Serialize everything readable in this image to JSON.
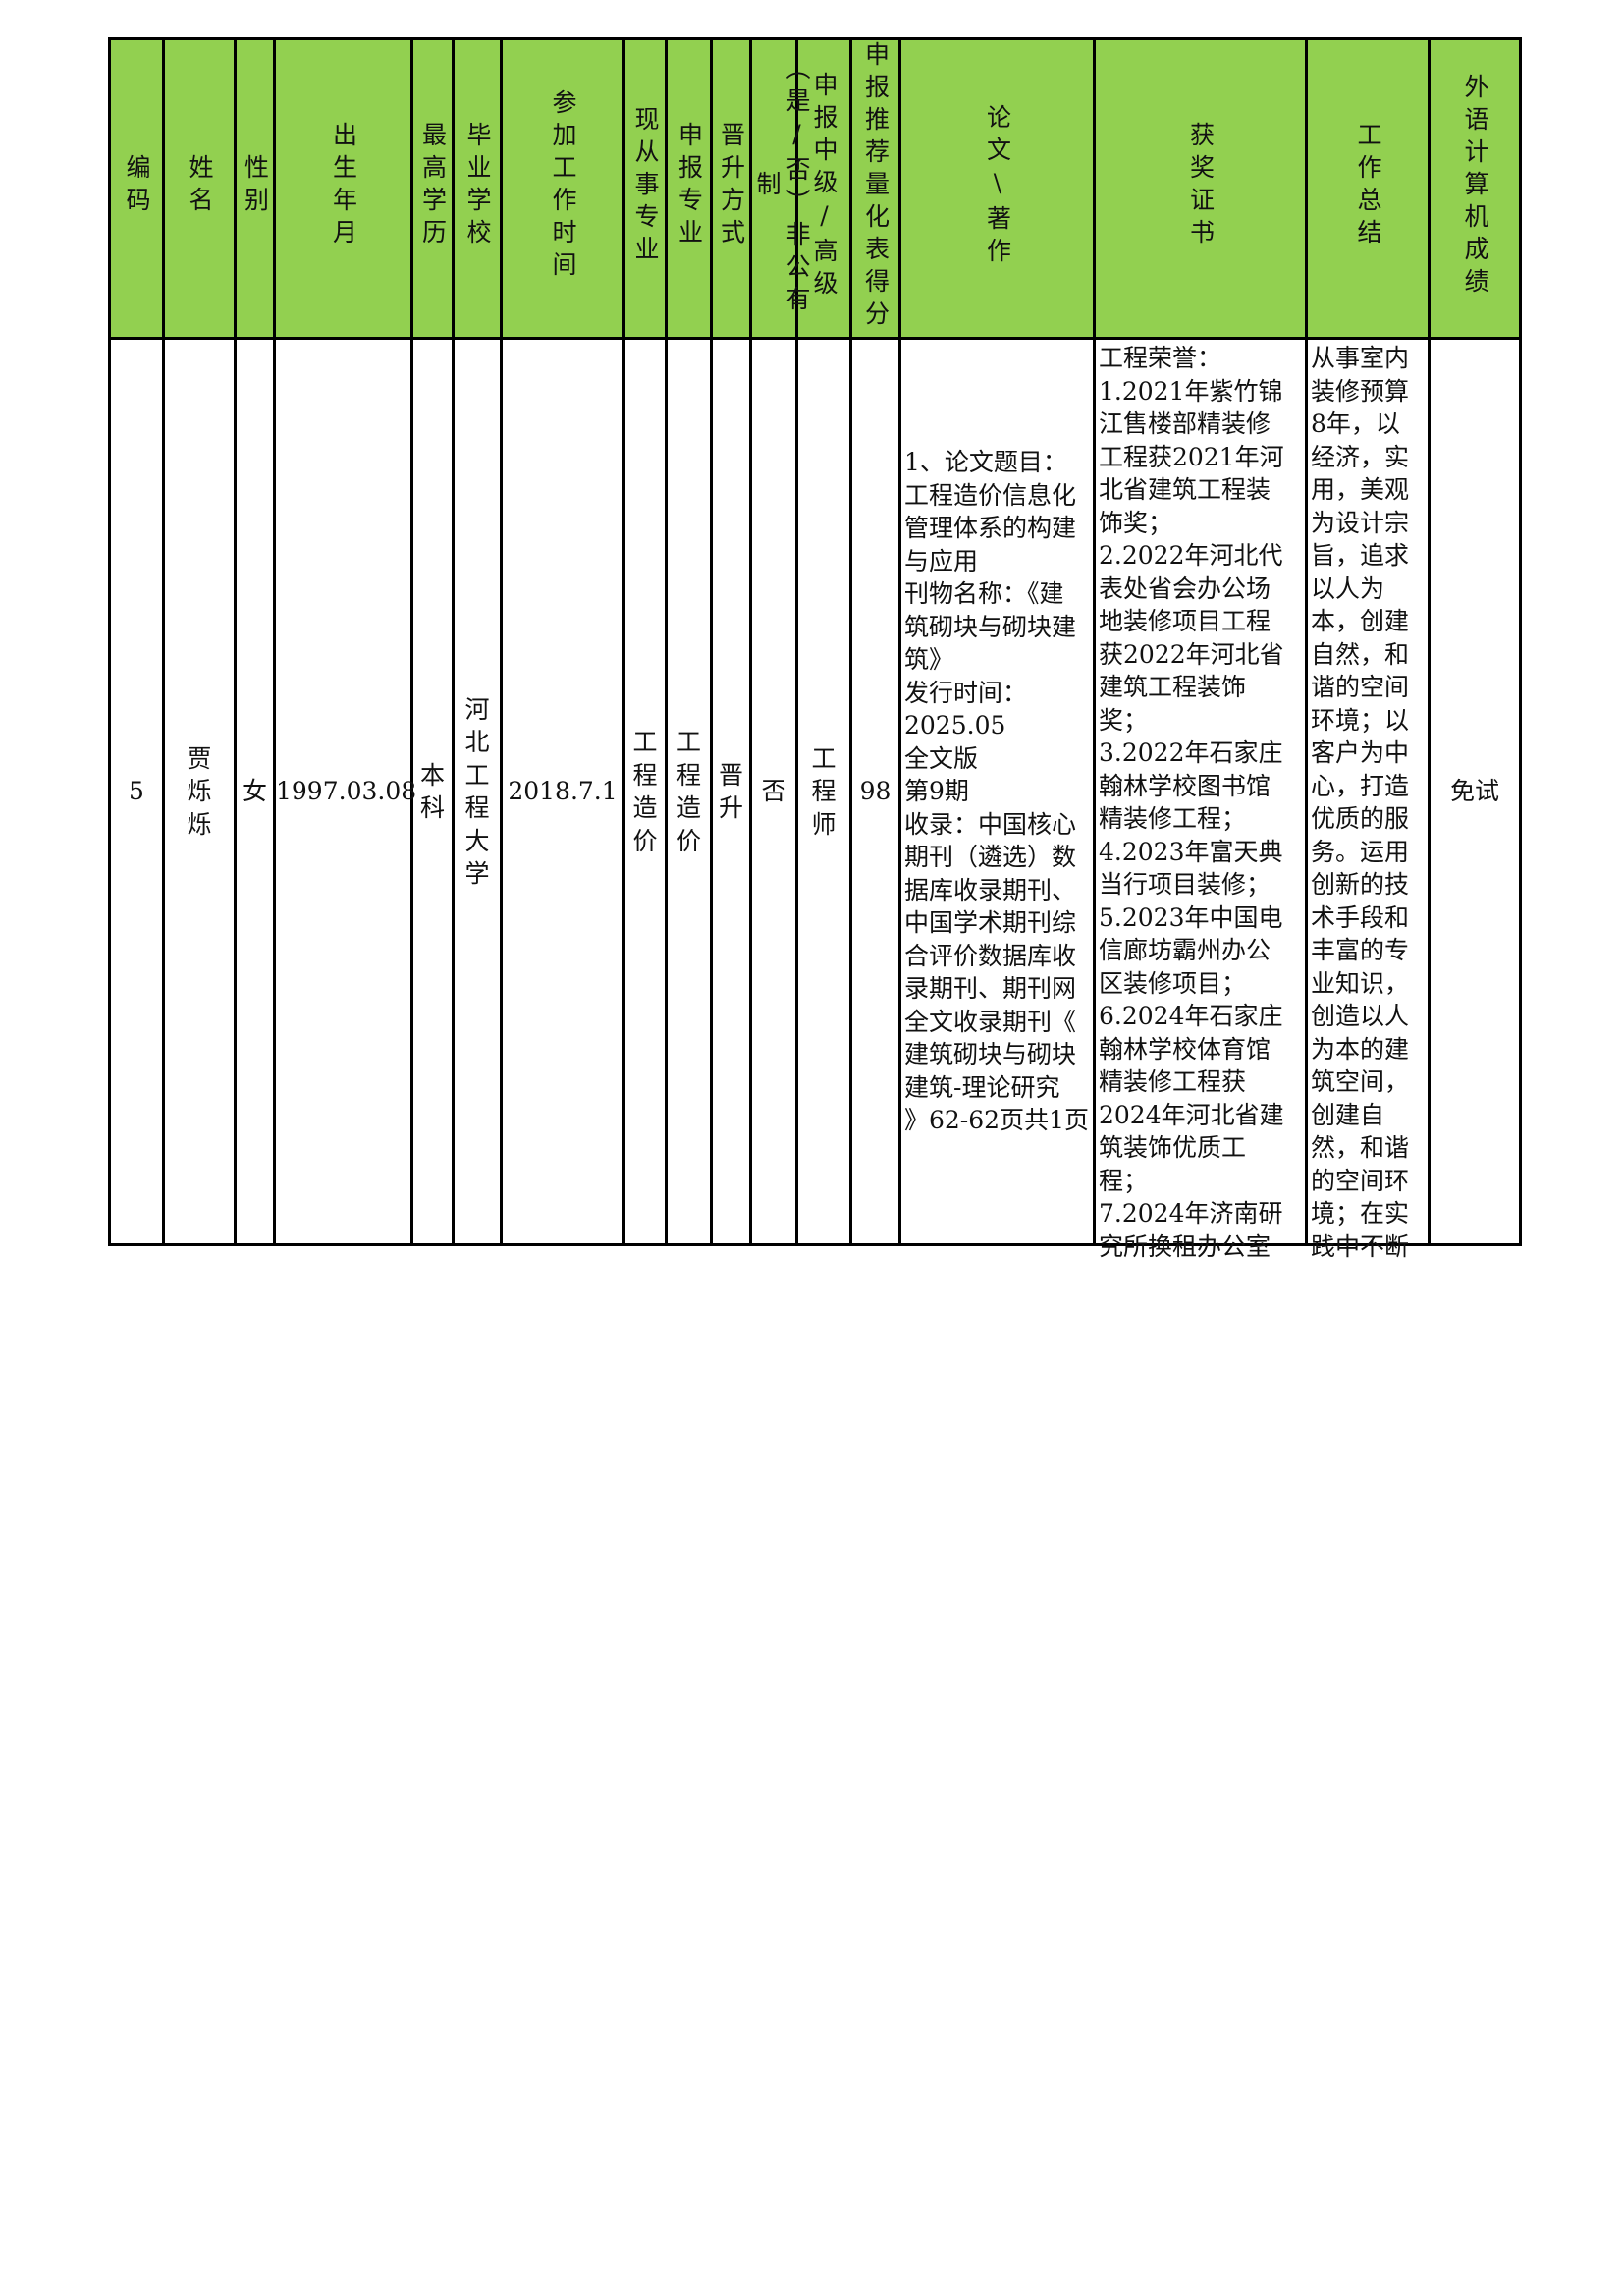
{
  "header_color": "#92d050",
  "headers": [
    "编码",
    "姓名",
    "性别",
    "出生年月",
    "最高学历",
    "毕业学校",
    "参加工作时间",
    "现从事专业",
    "申报专业",
    "晋升方式",
    "（是/否）非公有制",
    "申报中级/高级",
    "申报推荐量化表得分",
    "论文\\著作",
    "获奖证书",
    "工作总结",
    "外语计算机成绩"
  ],
  "row": {
    "id": "5",
    "name": "贾烁烁",
    "gender": "女",
    "birth": "1997.03.08",
    "education": "本科",
    "school": "河北工程大学",
    "work_start": "2018.7.1",
    "current_major": "工程造价",
    "apply_major": "工程造价",
    "promotion": "晋升",
    "non_public": "否",
    "level": "工程师",
    "score": "98",
    "papers": "1、论文题目：\n工程造价信息化\n管理体系的构建\n与应用\n刊物名称：《建\n筑砌块与砌块建\n筑》\n发行时间：\n2025.05\n全文版\n第9期\n收录：中国核心\n期刊（遴选）数\n据库收录期刊、\n中国学术期刊综\n合评价数据库收\n录期刊、期刊网\n全文收录期刊《\n建筑砌块与砌块\n建筑-理论研究\n》62-62页共1页",
    "awards": "工程荣誉：\n1.2021年紫竹锦\n江售楼部精装修\n工程获2021年河\n北省建筑工程装\n饰奖；\n2.2022年河北代\n表处省会办公场\n地装修项目工程\n获2022年河北省\n建筑工程装饰\n奖；\n3.2022年石家庄\n翰林学校图书馆\n精装修工程；\n4.2023年富天典\n当行项目装修；\n5.2023年中国电\n信廊坊霸州办公\n区装修项目；\n6.2024年石家庄\n翰林学校体育馆\n精装修工程获\n2024年河北省建\n筑装饰优质工\n程；\n7.2024年济南研\n究所换租办公室",
    "summary": "从事室内\n装修预算\n8年，以\n经济，实\n用，美观\n为设计宗\n旨，追求\n以人为\n本，创建\n自然，和\n谐的空间\n环境；以\n客户为中\n心，打造\n优质的服\n务。运用\n创新的技\n术手段和\n丰富的专\n业知识，\n创造以人\n为本的建\n筑空间，\n创建自\n然，和谐\n的空间环\n境；在实\n践中不断",
    "lang_computer": "免试"
  }
}
